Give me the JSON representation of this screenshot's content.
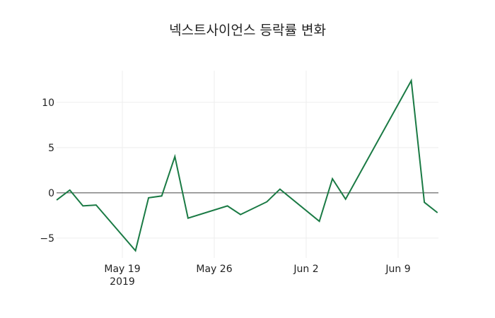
{
  "chart_data": {
    "type": "line",
    "title": "넥스트사이언스 등락률 변화",
    "xlabel": "",
    "ylabel": "",
    "ylim": [
      -7.2,
      13.5
    ],
    "grid": true,
    "legend": null,
    "x_tick_labels": [
      {
        "date": "2019-05-19",
        "label": "May 19",
        "sublabel": "2019"
      },
      {
        "date": "2019-05-26",
        "label": "May 26",
        "sublabel": ""
      },
      {
        "date": "2019-06-02",
        "label": "Jun 2",
        "sublabel": ""
      },
      {
        "date": "2019-06-09",
        "label": "Jun 9",
        "sublabel": ""
      }
    ],
    "y_ticks": [
      {
        "value": 10,
        "label": "10"
      },
      {
        "value": 5,
        "label": "5"
      },
      {
        "value": 0,
        "label": "0"
      },
      {
        "value": -5,
        "label": "−5"
      }
    ],
    "x": [
      "2019-05-14",
      "2019-05-15",
      "2019-05-16",
      "2019-05-17",
      "2019-05-20",
      "2019-05-21",
      "2019-05-22",
      "2019-05-23",
      "2019-05-24",
      "2019-05-27",
      "2019-05-28",
      "2019-05-30",
      "2019-05-31",
      "2019-06-03",
      "2019-06-04",
      "2019-06-05",
      "2019-06-10",
      "2019-06-11",
      "2019-06-12"
    ],
    "series": [
      {
        "name": "등락률",
        "color": "#1a7a44",
        "values": [
          -0.8,
          0.3,
          -1.45,
          -1.35,
          -6.4,
          -0.55,
          -0.35,
          4.0,
          -2.8,
          -1.45,
          -2.4,
          -1.0,
          0.4,
          -3.15,
          1.55,
          -0.7,
          12.4,
          -1.05,
          -2.2
        ]
      }
    ],
    "colors": {
      "line": "#1a7a44",
      "zeroline": "#444444",
      "grid": "#eeeeee",
      "text": "#222222"
    }
  }
}
